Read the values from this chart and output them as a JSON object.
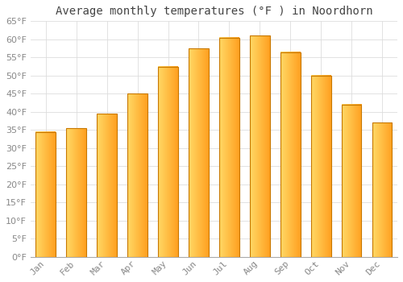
{
  "title": "Average monthly temperatures (°F ) in Noordhorn",
  "months": [
    "Jan",
    "Feb",
    "Mar",
    "Apr",
    "May",
    "Jun",
    "Jul",
    "Aug",
    "Sep",
    "Oct",
    "Nov",
    "Dec"
  ],
  "values": [
    34.5,
    35.5,
    39.5,
    45.0,
    52.5,
    57.5,
    60.5,
    61.0,
    56.5,
    50.0,
    42.0,
    37.0
  ],
  "bar_color_left": "#FFD966",
  "bar_color_right": "#FFA020",
  "bar_edge_color": "#C87800",
  "ylim": [
    0,
    65
  ],
  "yticks": [
    0,
    5,
    10,
    15,
    20,
    25,
    30,
    35,
    40,
    45,
    50,
    55,
    60,
    65
  ],
  "background_color": "#FFFFFF",
  "grid_color": "#DDDDDD",
  "title_fontsize": 10,
  "tick_fontsize": 8,
  "tick_color": "#888888",
  "title_color": "#444444",
  "font_family": "monospace"
}
